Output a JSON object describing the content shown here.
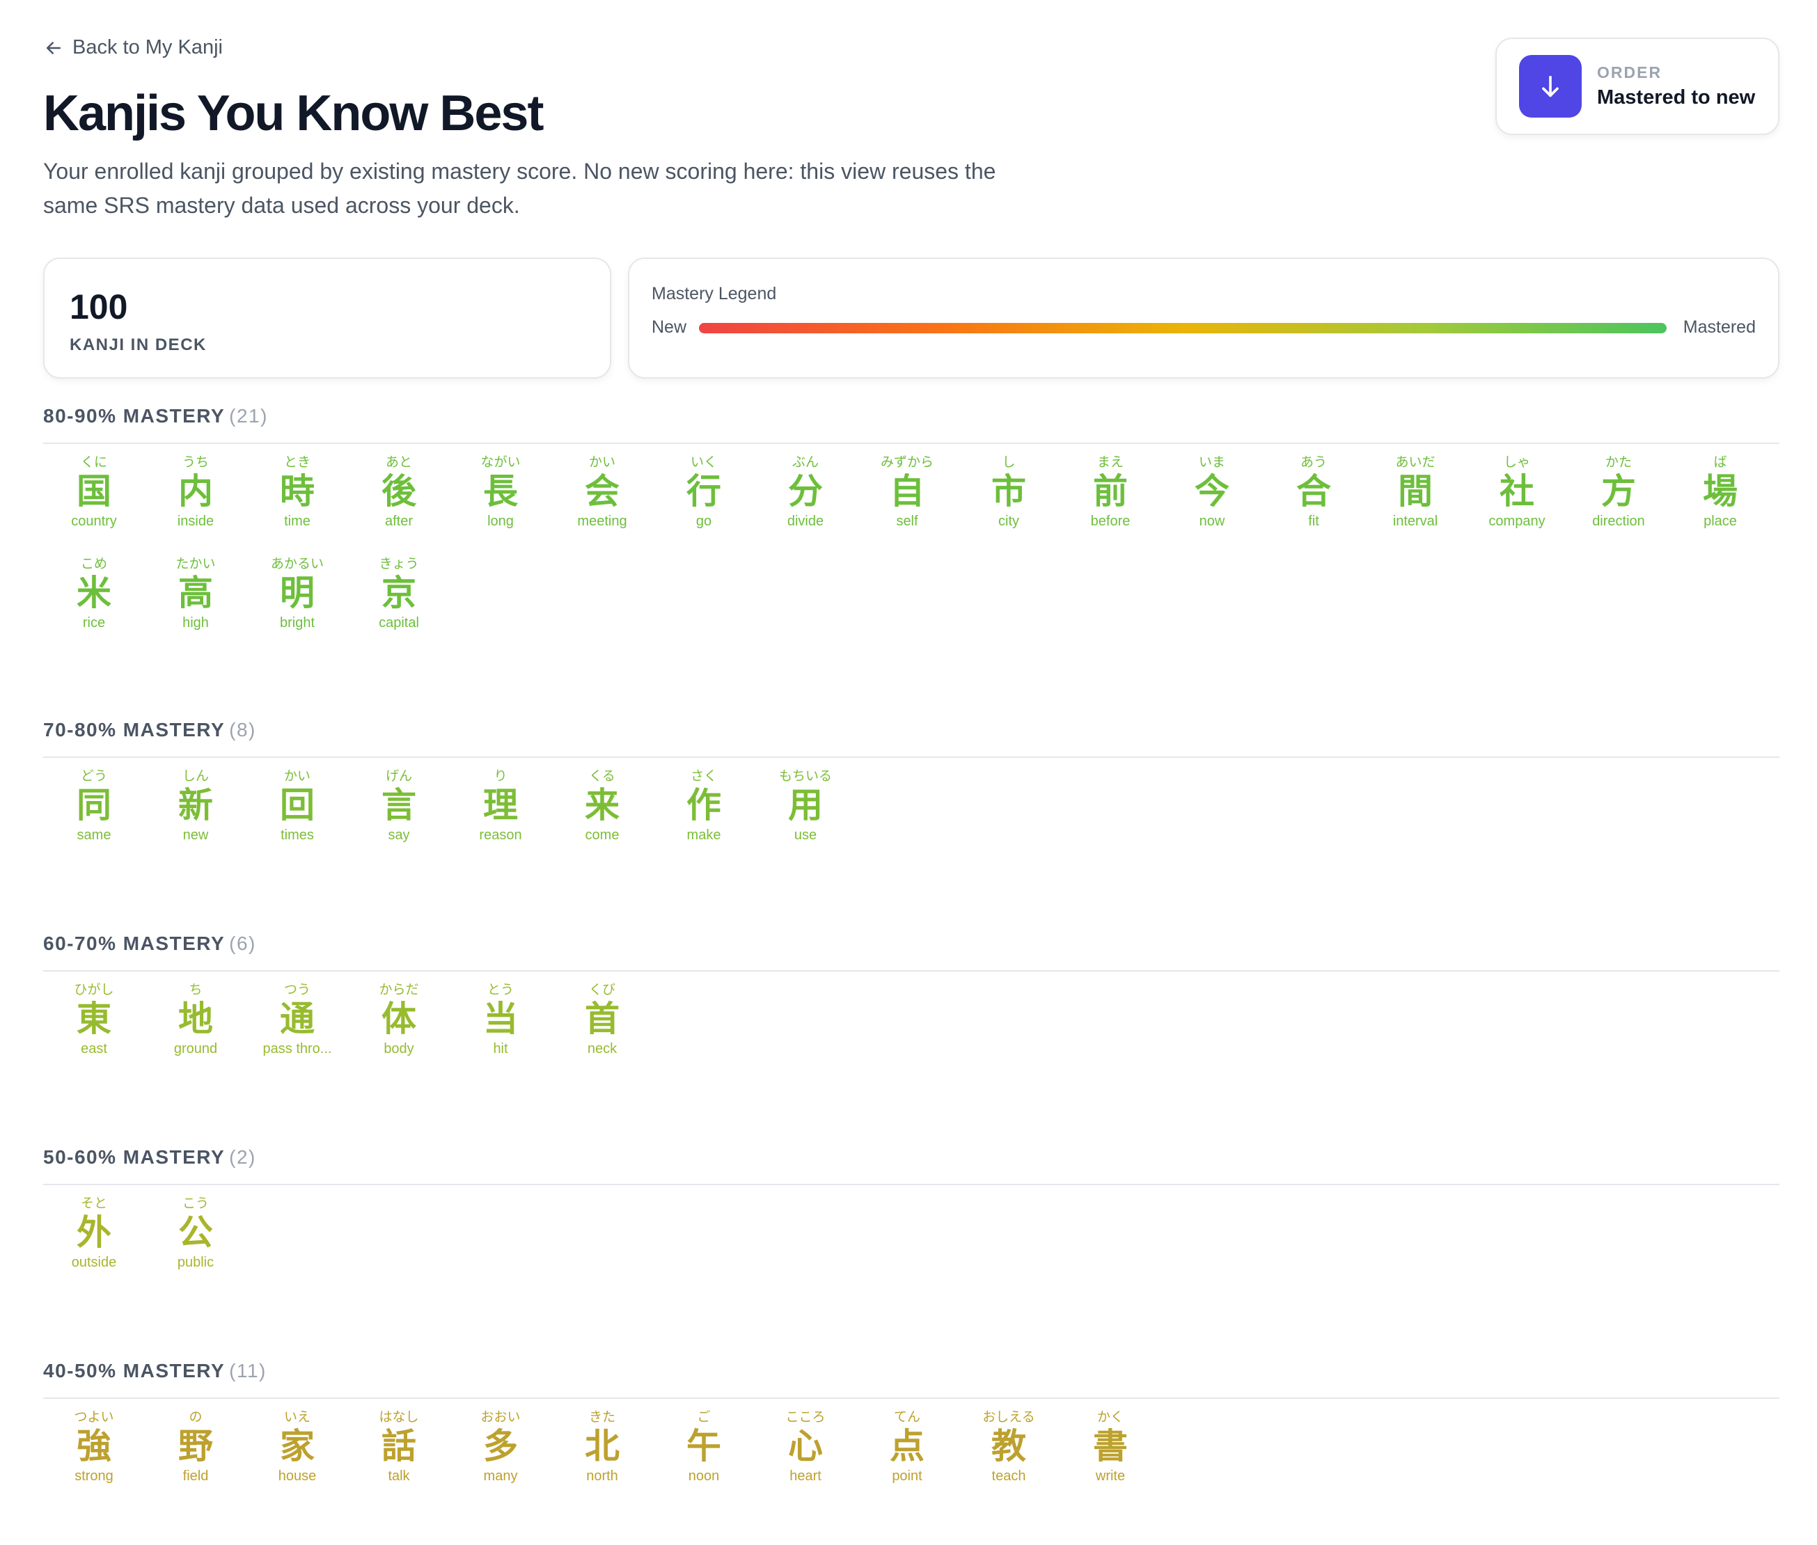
{
  "header": {
    "back_label": "Back to My Kanji",
    "title": "Kanjis You Know Best",
    "description": "Your enrolled kanji grouped by existing mastery score. No new scoring here: this view reuses the same SRS mastery data used across your deck."
  },
  "order": {
    "label": "ORDER",
    "value": "Mastered to new",
    "button_icon": "arrow-down-icon",
    "button_color": "#4f46e5"
  },
  "stats": {
    "count": "100",
    "label": "KANJI IN DECK"
  },
  "legend": {
    "title": "Mastery Legend",
    "low": "New",
    "high": "Mastered"
  },
  "groups": [
    {
      "title": "80-90% MASTERY",
      "count": "(21)",
      "color": "#6dbf3b",
      "kanji": [
        {
          "reading": "くに",
          "char": "国",
          "meaning": "country"
        },
        {
          "reading": "うち",
          "char": "内",
          "meaning": "inside"
        },
        {
          "reading": "とき",
          "char": "時",
          "meaning": "time"
        },
        {
          "reading": "あと",
          "char": "後",
          "meaning": "after"
        },
        {
          "reading": "ながい",
          "char": "長",
          "meaning": "long"
        },
        {
          "reading": "かい",
          "char": "会",
          "meaning": "meeting"
        },
        {
          "reading": "いく",
          "char": "行",
          "meaning": "go"
        },
        {
          "reading": "ぶん",
          "char": "分",
          "meaning": "divide"
        },
        {
          "reading": "みずから",
          "char": "自",
          "meaning": "self"
        },
        {
          "reading": "し",
          "char": "市",
          "meaning": "city"
        },
        {
          "reading": "まえ",
          "char": "前",
          "meaning": "before"
        },
        {
          "reading": "いま",
          "char": "今",
          "meaning": "now"
        },
        {
          "reading": "あう",
          "char": "合",
          "meaning": "fit"
        },
        {
          "reading": "あいだ",
          "char": "間",
          "meaning": "interval"
        },
        {
          "reading": "しゃ",
          "char": "社",
          "meaning": "company"
        },
        {
          "reading": "かた",
          "char": "方",
          "meaning": "direction"
        },
        {
          "reading": "ば",
          "char": "場",
          "meaning": "place"
        },
        {
          "reading": "こめ",
          "char": "米",
          "meaning": "rice"
        },
        {
          "reading": "たかい",
          "char": "高",
          "meaning": "high"
        },
        {
          "reading": "あかるい",
          "char": "明",
          "meaning": "bright"
        },
        {
          "reading": "きょう",
          "char": "京",
          "meaning": "capital"
        }
      ]
    },
    {
      "title": "70-80% MASTERY",
      "count": "(8)",
      "color": "#7cbd36",
      "kanji": [
        {
          "reading": "どう",
          "char": "同",
          "meaning": "same"
        },
        {
          "reading": "しん",
          "char": "新",
          "meaning": "new"
        },
        {
          "reading": "かい",
          "char": "回",
          "meaning": "times"
        },
        {
          "reading": "げん",
          "char": "言",
          "meaning": "say"
        },
        {
          "reading": "り",
          "char": "理",
          "meaning": "reason"
        },
        {
          "reading": "くる",
          "char": "来",
          "meaning": "come"
        },
        {
          "reading": "さく",
          "char": "作",
          "meaning": "make"
        },
        {
          "reading": "もちいる",
          "char": "用",
          "meaning": "use"
        }
      ]
    },
    {
      "title": "60-70% MASTERY",
      "count": "(6)",
      "color": "#97bb2e",
      "kanji": [
        {
          "reading": "ひがし",
          "char": "東",
          "meaning": "east"
        },
        {
          "reading": "ち",
          "char": "地",
          "meaning": "ground"
        },
        {
          "reading": "つう",
          "char": "通",
          "meaning": "pass thro..."
        },
        {
          "reading": "からだ",
          "char": "体",
          "meaning": "body"
        },
        {
          "reading": "とう",
          "char": "当",
          "meaning": "hit"
        },
        {
          "reading": "くび",
          "char": "首",
          "meaning": "neck"
        }
      ]
    },
    {
      "title": "50-60% MASTERY",
      "count": "(2)",
      "color": "#a9b52b",
      "kanji": [
        {
          "reading": "そと",
          "char": "外",
          "meaning": "outside"
        },
        {
          "reading": "こう",
          "char": "公",
          "meaning": "public"
        }
      ]
    },
    {
      "title": "40-50% MASTERY",
      "count": "(11)",
      "color": "#bda12e",
      "kanji": [
        {
          "reading": "つよい",
          "char": "強",
          "meaning": "strong"
        },
        {
          "reading": "の",
          "char": "野",
          "meaning": "field"
        },
        {
          "reading": "いえ",
          "char": "家",
          "meaning": "house"
        },
        {
          "reading": "はなし",
          "char": "話",
          "meaning": "talk"
        },
        {
          "reading": "おおい",
          "char": "多",
          "meaning": "many"
        },
        {
          "reading": "きた",
          "char": "北",
          "meaning": "north"
        },
        {
          "reading": "ご",
          "char": "午",
          "meaning": "noon"
        },
        {
          "reading": "こころ",
          "char": "心",
          "meaning": "heart"
        },
        {
          "reading": "てん",
          "char": "点",
          "meaning": "point"
        },
        {
          "reading": "おしえる",
          "char": "教",
          "meaning": "teach"
        },
        {
          "reading": "かく",
          "char": "書",
          "meaning": "write"
        }
      ]
    }
  ]
}
